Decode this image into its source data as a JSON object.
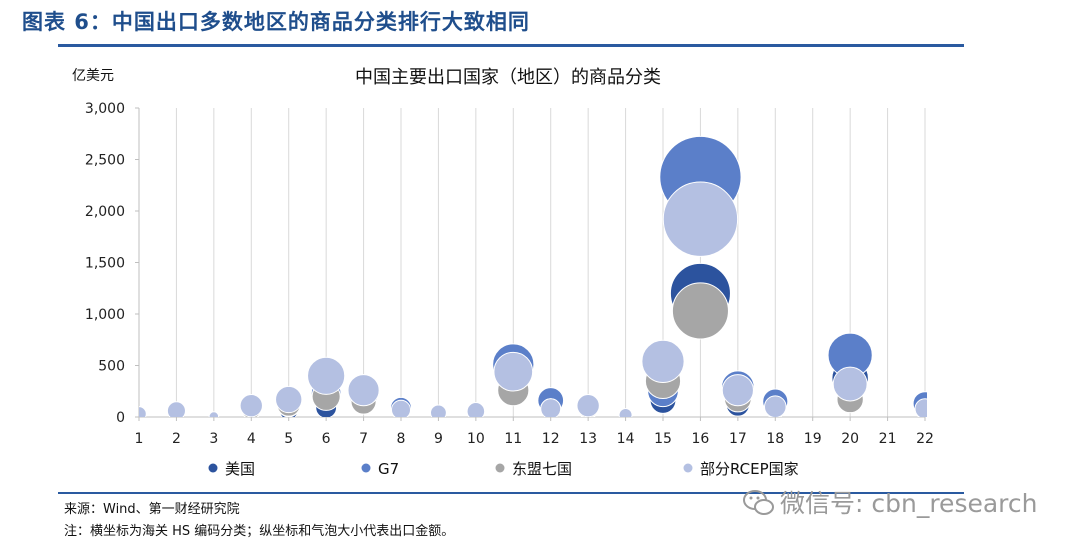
{
  "figure_title": "图表 6：中国出口多数地区的商品分类排行大致相同",
  "source": "来源：Wind、第一财经研究院",
  "note": "注：横坐标为海关 HS 编码分类；纵坐标和气泡大小代表出口金额。",
  "watermark": "微信号: cbn_research",
  "watermark_icon": "wechat-icon",
  "chart_data": {
    "type": "bubble",
    "title": "中国主要出口国家（地区）的商品分类",
    "ylabel": "亿美元",
    "xlabel": "",
    "xlim": [
      1,
      22
    ],
    "ylim": [
      0,
      3000
    ],
    "x_ticks": [
      "1",
      "2",
      "3",
      "4",
      "5",
      "6",
      "7",
      "8",
      "9",
      "10",
      "11",
      "12",
      "13",
      "14",
      "15",
      "16",
      "17",
      "18",
      "19",
      "20",
      "21",
      "22"
    ],
    "y_ticks": [
      "0",
      "500",
      "1,000",
      "1,500",
      "2,000",
      "2,500",
      "3,000"
    ],
    "y_tick_values": [
      0,
      500,
      1000,
      1500,
      2000,
      2500,
      3000
    ],
    "grid": "vertical",
    "legend_position": "bottom",
    "series": [
      {
        "name": "美国",
        "color": "#2c539e",
        "points": [
          {
            "x": 1,
            "y": 5
          },
          {
            "x": 2,
            "y": 20
          },
          {
            "x": 4,
            "y": 30
          },
          {
            "x": 5,
            "y": 60
          },
          {
            "x": 6,
            "y": 90
          },
          {
            "x": 7,
            "y": 200
          },
          {
            "x": 8,
            "y": 70
          },
          {
            "x": 9,
            "y": 20
          },
          {
            "x": 10,
            "y": 30
          },
          {
            "x": 11,
            "y": 460
          },
          {
            "x": 12,
            "y": 140
          },
          {
            "x": 13,
            "y": 70
          },
          {
            "x": 15,
            "y": 160
          },
          {
            "x": 16,
            "y": 1200
          },
          {
            "x": 17,
            "y": 120
          },
          {
            "x": 18,
            "y": 140
          },
          {
            "x": 20,
            "y": 380
          },
          {
            "x": 22,
            "y": 120
          }
        ]
      },
      {
        "name": "G7",
        "color": "#5b7fc9",
        "points": [
          {
            "x": 1,
            "y": 10
          },
          {
            "x": 2,
            "y": 40
          },
          {
            "x": 4,
            "y": 60
          },
          {
            "x": 5,
            "y": 110
          },
          {
            "x": 6,
            "y": 230
          },
          {
            "x": 7,
            "y": 260
          },
          {
            "x": 8,
            "y": 90
          },
          {
            "x": 9,
            "y": 30
          },
          {
            "x": 10,
            "y": 50
          },
          {
            "x": 11,
            "y": 510
          },
          {
            "x": 12,
            "y": 160
          },
          {
            "x": 13,
            "y": 90
          },
          {
            "x": 15,
            "y": 250
          },
          {
            "x": 16,
            "y": 2330
          },
          {
            "x": 17,
            "y": 290
          },
          {
            "x": 18,
            "y": 150
          },
          {
            "x": 20,
            "y": 600
          },
          {
            "x": 22,
            "y": 130
          }
        ]
      },
      {
        "name": "东盟七国",
        "color": "#a6a6a6",
        "points": [
          {
            "x": 1,
            "y": 10
          },
          {
            "x": 2,
            "y": 30
          },
          {
            "x": 4,
            "y": 80
          },
          {
            "x": 5,
            "y": 120
          },
          {
            "x": 6,
            "y": 200
          },
          {
            "x": 7,
            "y": 150
          },
          {
            "x": 8,
            "y": 60
          },
          {
            "x": 9,
            "y": 30
          },
          {
            "x": 10,
            "y": 40
          },
          {
            "x": 11,
            "y": 260
          },
          {
            "x": 12,
            "y": 80
          },
          {
            "x": 13,
            "y": 90
          },
          {
            "x": 15,
            "y": 350
          },
          {
            "x": 16,
            "y": 1030
          },
          {
            "x": 17,
            "y": 180
          },
          {
            "x": 18,
            "y": 80
          },
          {
            "x": 20,
            "y": 170
          },
          {
            "x": 22,
            "y": 60
          }
        ]
      },
      {
        "name": "部分RCEP国家",
        "color": "#b4c0e2",
        "points": [
          {
            "x": 1,
            "y": 30
          },
          {
            "x": 2,
            "y": 60
          },
          {
            "x": 3,
            "y": 5
          },
          {
            "x": 4,
            "y": 110
          },
          {
            "x": 5,
            "y": 170
          },
          {
            "x": 6,
            "y": 400
          },
          {
            "x": 7,
            "y": 260
          },
          {
            "x": 8,
            "y": 70
          },
          {
            "x": 9,
            "y": 40
          },
          {
            "x": 10,
            "y": 55
          },
          {
            "x": 11,
            "y": 440
          },
          {
            "x": 12,
            "y": 80
          },
          {
            "x": 13,
            "y": 110
          },
          {
            "x": 14,
            "y": 20
          },
          {
            "x": 15,
            "y": 540
          },
          {
            "x": 16,
            "y": 1920
          },
          {
            "x": 17,
            "y": 260
          },
          {
            "x": 18,
            "y": 100
          },
          {
            "x": 20,
            "y": 320
          },
          {
            "x": 22,
            "y": 80
          }
        ]
      }
    ]
  }
}
